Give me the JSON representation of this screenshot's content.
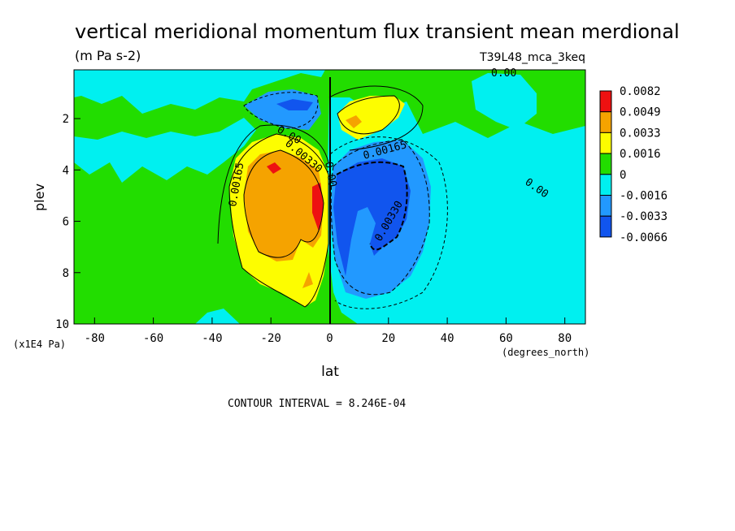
{
  "chart_data": {
    "type": "heatmap",
    "title": "vertical meridional momentum flux transient mean merdional",
    "units": "(m Pa s-2)",
    "dataset": "T39L48_mca_3keq",
    "xlabel": "lat",
    "xunits": "(degrees_north)",
    "ylabel": "plev",
    "yunits": "(x1E4 Pa)",
    "xlim": [
      -87,
      87
    ],
    "ylim": [
      10,
      0.1
    ],
    "x_ticks": [
      "-80",
      "-60",
      "-40",
      "-20",
      "0",
      "20",
      "40",
      "60",
      "80"
    ],
    "y_ticks": [
      "2",
      "4",
      "6",
      "8",
      "10"
    ],
    "contour_interval": "CONTOUR INTERVAL = 8.246E-04",
    "colorbar": {
      "labels": [
        "0.0082",
        "0.0049",
        "0.0033",
        "0.0016",
        "0",
        "-0.0016",
        "-0.0033",
        "-0.0066"
      ],
      "colors": [
        "#ee1111",
        "#f5a300",
        "#fdfd00",
        "#22dd00",
        "#00f0f0",
        "#2299ff",
        "#1155ee"
      ]
    },
    "contour_labels": [
      "0.00",
      "0.00",
      "0.00165",
      "0.00",
      "0.00330",
      "0.00",
      "0.00165",
      "0.00330"
    ],
    "features": [
      {
        "name": "positive-max",
        "lat": -20,
        "plev": 4.0,
        "value": 0.0082
      },
      {
        "name": "positive-max",
        "lat": -5,
        "plev": 5.2,
        "value": 0.0082
      },
      {
        "name": "negative-min",
        "lat": 15,
        "plev": 6.0,
        "value": -0.0066
      },
      {
        "name": "upper-positive",
        "lat": 10,
        "plev": 2.0,
        "value": 0.0049
      },
      {
        "name": "upper-negative",
        "lat": -10,
        "plev": 1.5,
        "value": -0.0033
      }
    ]
  }
}
